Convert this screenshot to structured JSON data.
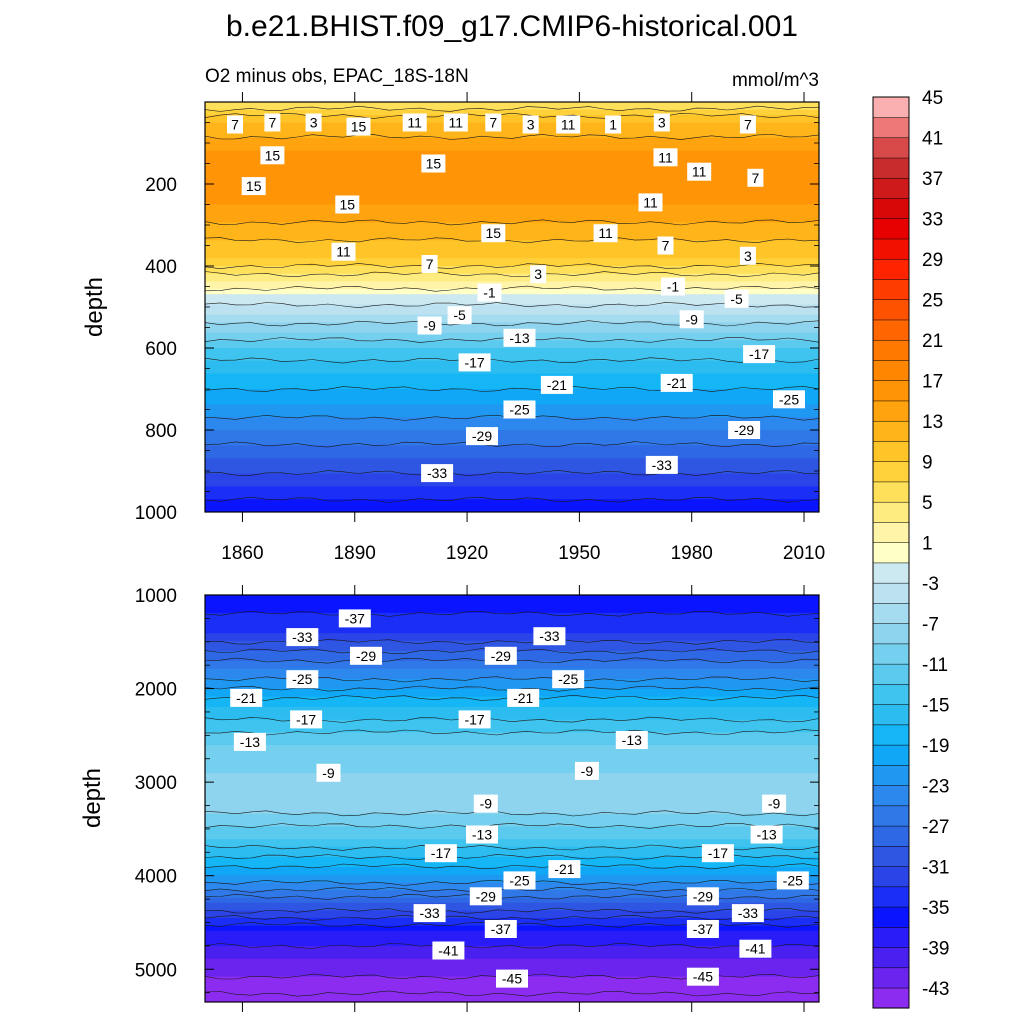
{
  "chart_data": {
    "type": "contour",
    "title": "b.e21.BHIST.f09_g17.CMIP6-historical.001",
    "subtitle_left": "O2 minus obs, EPAC_18S-18N",
    "subtitle_right": "mmol/m^3",
    "xlabel": "",
    "ylabel": "depth",
    "xlim": [
      1850,
      2014
    ],
    "xticks": [
      1860,
      1890,
      1920,
      1950,
      1980,
      2010
    ],
    "panels": [
      {
        "name": "upper",
        "ylim": [
          0,
          1000
        ],
        "yticks": [
          200,
          400,
          600,
          800,
          1000
        ],
        "profile": [
          [
            0,
            5
          ],
          [
            50,
            11
          ],
          [
            120,
            15
          ],
          [
            250,
            15
          ],
          [
            380,
            9
          ],
          [
            440,
            3
          ],
          [
            470,
            -1
          ],
          [
            520,
            -5
          ],
          [
            560,
            -9
          ],
          [
            600,
            -13
          ],
          [
            660,
            -17
          ],
          [
            740,
            -21
          ],
          [
            800,
            -25
          ],
          [
            870,
            -29
          ],
          [
            940,
            -33
          ],
          [
            1000,
            -37
          ]
        ],
        "contour_labels": [
          {
            "t": "7",
            "x": 1858,
            "y": 55
          },
          {
            "t": "7",
            "x": 1868,
            "y": 50
          },
          {
            "t": "3",
            "x": 1879,
            "y": 50
          },
          {
            "t": "15",
            "x": 1891,
            "y": 60
          },
          {
            "t": "11",
            "x": 1906,
            "y": 50
          },
          {
            "t": "11",
            "x": 1917,
            "y": 50
          },
          {
            "t": "7",
            "x": 1927,
            "y": 50
          },
          {
            "t": "3",
            "x": 1937,
            "y": 55
          },
          {
            "t": "11",
            "x": 1947,
            "y": 55
          },
          {
            "t": "1",
            "x": 1959,
            "y": 55
          },
          {
            "t": "3",
            "x": 1972,
            "y": 50
          },
          {
            "t": "7",
            "x": 1995,
            "y": 55
          },
          {
            "t": "15",
            "x": 1868,
            "y": 130
          },
          {
            "t": "15",
            "x": 1911,
            "y": 150
          },
          {
            "t": "11",
            "x": 1973,
            "y": 135
          },
          {
            "t": "11",
            "x": 1982,
            "y": 170
          },
          {
            "t": "7",
            "x": 1997,
            "y": 185
          },
          {
            "t": "15",
            "x": 1863,
            "y": 205
          },
          {
            "t": "15",
            "x": 1888,
            "y": 250
          },
          {
            "t": "11",
            "x": 1969,
            "y": 245
          },
          {
            "t": "15",
            "x": 1927,
            "y": 320
          },
          {
            "t": "11",
            "x": 1957,
            "y": 320
          },
          {
            "t": "7",
            "x": 1973,
            "y": 350
          },
          {
            "t": "11",
            "x": 1887,
            "y": 365
          },
          {
            "t": "7",
            "x": 1910,
            "y": 395
          },
          {
            "t": "3",
            "x": 1995,
            "y": 375
          },
          {
            "t": "3",
            "x": 1939,
            "y": 420
          },
          {
            "t": "-1",
            "x": 1926,
            "y": 465
          },
          {
            "t": "-1",
            "x": 1975,
            "y": 450
          },
          {
            "t": "-5",
            "x": 1992,
            "y": 480
          },
          {
            "t": "-5",
            "x": 1918,
            "y": 520
          },
          {
            "t": "-9",
            "x": 1910,
            "y": 545
          },
          {
            "t": "-9",
            "x": 1980,
            "y": 530
          },
          {
            "t": "-13",
            "x": 1934,
            "y": 575
          },
          {
            "t": "-17",
            "x": 1922,
            "y": 635
          },
          {
            "t": "-17",
            "x": 1998,
            "y": 615
          },
          {
            "t": "-21",
            "x": 1944,
            "y": 690
          },
          {
            "t": "-21",
            "x": 1976,
            "y": 685
          },
          {
            "t": "-25",
            "x": 1934,
            "y": 750
          },
          {
            "t": "-25",
            "x": 2006,
            "y": 725
          },
          {
            "t": "-29",
            "x": 1924,
            "y": 815
          },
          {
            "t": "-29",
            "x": 1994,
            "y": 800
          },
          {
            "t": "-33",
            "x": 1912,
            "y": 905
          },
          {
            "t": "-33",
            "x": 1972,
            "y": 885
          }
        ]
      },
      {
        "name": "lower",
        "ylim": [
          1000,
          5350
        ],
        "yticks": [
          1000,
          2000,
          3000,
          4000,
          5000
        ],
        "profile": [
          [
            1000,
            -37
          ],
          [
            1400,
            -33
          ],
          [
            1800,
            -25
          ],
          [
            2200,
            -17
          ],
          [
            2600,
            -11
          ],
          [
            2900,
            -9
          ],
          [
            3200,
            -7
          ],
          [
            3600,
            -13
          ],
          [
            4000,
            -21
          ],
          [
            4300,
            -29
          ],
          [
            4600,
            -37
          ],
          [
            4900,
            -41
          ],
          [
            5350,
            -46
          ]
        ],
        "contour_labels": [
          {
            "t": "-37",
            "x": 1890,
            "y": 1250
          },
          {
            "t": "-33",
            "x": 1876,
            "y": 1450
          },
          {
            "t": "-33",
            "x": 1942,
            "y": 1440
          },
          {
            "t": "-29",
            "x": 1893,
            "y": 1650
          },
          {
            "t": "-29",
            "x": 1929,
            "y": 1650
          },
          {
            "t": "-25",
            "x": 1876,
            "y": 1900
          },
          {
            "t": "-25",
            "x": 1947,
            "y": 1900
          },
          {
            "t": "-21",
            "x": 1861,
            "y": 2100
          },
          {
            "t": "-21",
            "x": 1935,
            "y": 2100
          },
          {
            "t": "-17",
            "x": 1877,
            "y": 2330
          },
          {
            "t": "-17",
            "x": 1922,
            "y": 2330
          },
          {
            "t": "-13",
            "x": 1862,
            "y": 2570
          },
          {
            "t": "-13",
            "x": 1964,
            "y": 2550
          },
          {
            "t": "-9",
            "x": 1883,
            "y": 2900
          },
          {
            "t": "-9",
            "x": 1952,
            "y": 2880
          },
          {
            "t": "-9",
            "x": 1925,
            "y": 3230
          },
          {
            "t": "-9",
            "x": 2002,
            "y": 3230
          },
          {
            "t": "-13",
            "x": 1924,
            "y": 3560
          },
          {
            "t": "-13",
            "x": 2000,
            "y": 3560
          },
          {
            "t": "-17",
            "x": 1913,
            "y": 3760
          },
          {
            "t": "-17",
            "x": 1987,
            "y": 3760
          },
          {
            "t": "-21",
            "x": 1946,
            "y": 3930
          },
          {
            "t": "-25",
            "x": 1934,
            "y": 4050
          },
          {
            "t": "-25",
            "x": 2007,
            "y": 4050
          },
          {
            "t": "-29",
            "x": 1925,
            "y": 4220
          },
          {
            "t": "-29",
            "x": 1983,
            "y": 4220
          },
          {
            "t": "-33",
            "x": 1910,
            "y": 4400
          },
          {
            "t": "-33",
            "x": 1995,
            "y": 4400
          },
          {
            "t": "-37",
            "x": 1929,
            "y": 4570
          },
          {
            "t": "-37",
            "x": 1983,
            "y": 4570
          },
          {
            "t": "-41",
            "x": 1915,
            "y": 4800
          },
          {
            "t": "-41",
            "x": 1997,
            "y": 4780
          },
          {
            "t": "-45",
            "x": 1932,
            "y": 5100
          },
          {
            "t": "-45",
            "x": 1983,
            "y": 5080
          }
        ]
      }
    ],
    "colorbar": {
      "levels": [
        -45,
        -43,
        -41,
        -39,
        -37,
        -35,
        -33,
        -31,
        -29,
        -27,
        -25,
        -23,
        -21,
        -19,
        -17,
        -15,
        -13,
        -11,
        -9,
        -7,
        -5,
        -3,
        -1,
        1,
        3,
        5,
        7,
        9,
        11,
        13,
        15,
        17,
        19,
        21,
        23,
        25,
        27,
        29,
        31,
        33,
        35,
        37,
        39,
        41,
        43,
        45
      ],
      "labels": [
        "45",
        "41",
        "37",
        "33",
        "29",
        "25",
        "21",
        "17",
        "13",
        "9",
        "5",
        "1",
        "-3",
        "-7",
        "-11",
        "-15",
        "-19",
        "-23",
        "-27",
        "-31",
        "-35",
        "-39",
        "-43"
      ],
      "colors": [
        "#8c2cf0",
        "#6b24ee",
        "#4a20f0",
        "#2a1cf8",
        "#0a14ff",
        "#1a2ef5",
        "#2a44e8",
        "#2e56e2",
        "#2f68e4",
        "#3078e8",
        "#2d88ee",
        "#1f98f2",
        "#10a8f6",
        "#14b6f6",
        "#2cbcf0",
        "#3ec4ee",
        "#5ccaee",
        "#74d0ee",
        "#8ed4ee",
        "#a6dcf0",
        "#bce2f2",
        "#cce8f0",
        "#ffffc6",
        "#fff4a8",
        "#ffec80",
        "#ffe05a",
        "#ffd23c",
        "#ffc428",
        "#ffb41a",
        "#ffa40e",
        "#ff9406",
        "#ff8600",
        "#ff7800",
        "#ff6600",
        "#ff5200",
        "#ff3c00",
        "#ff2400",
        "#f21000",
        "#e60000",
        "#d80808",
        "#ce1a1a",
        "#c82c2c",
        "#d84a4a",
        "#ec7878",
        "#fab0b0"
      ]
    }
  }
}
